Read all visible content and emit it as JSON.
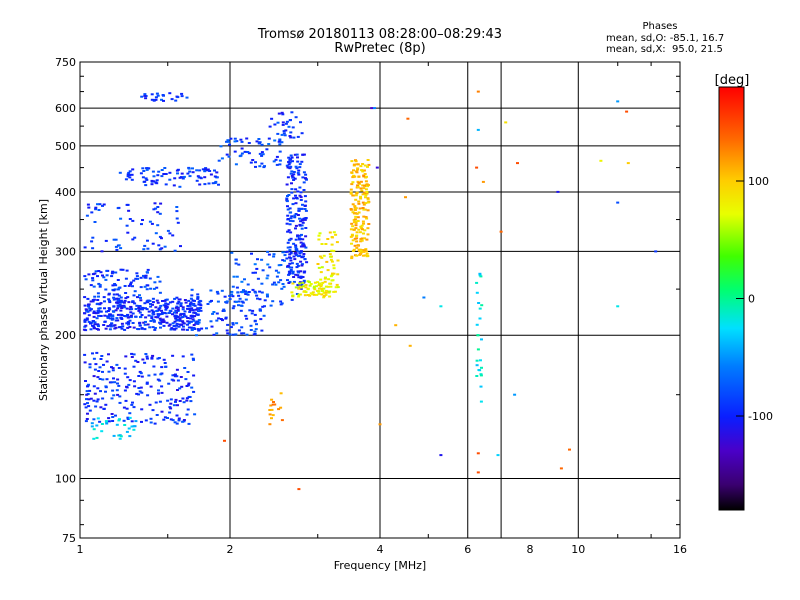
{
  "header": {
    "title_line1": "Tromsø 20180113 08:28:00–08:29:43",
    "title_line2": "RwPretec (8p)"
  },
  "stats": {
    "heading": "Phases",
    "line_o": "mean, sd,O: -85.1, 16.7",
    "line_x": "mean, sd,X:  95.0, 21.5"
  },
  "chart_data": {
    "type": "scatter",
    "title": "Tromsø 20180113 08:28:00–08:29:43",
    "subtitle": "RwPretec (8p)",
    "xlabel": "Frequency [MHz]",
    "ylabel": "Stationary phase Virtual Height [km]",
    "x_scale": "log",
    "y_scale": "log",
    "xlim": [
      1,
      16
    ],
    "ylim": [
      75,
      750
    ],
    "x_ticks": [
      1,
      2,
      4,
      6,
      8,
      10,
      16
    ],
    "x_gridlines": [
      2,
      4,
      6,
      7,
      10
    ],
    "y_ticks": [
      75,
      100,
      200,
      300,
      400,
      500,
      600,
      750
    ],
    "y_gridlines": [
      100,
      200,
      300,
      400,
      500,
      600
    ],
    "colorbar": {
      "label": "[deg]",
      "ticks": [
        100,
        0,
        -100
      ],
      "range": [
        -180,
        180
      ],
      "colormap": "rainbow"
    },
    "clusters": [
      {
        "f": [
          1.02,
          1.75
        ],
        "h": [
          205,
          240
        ],
        "phase": -95,
        "n": 420
      },
      {
        "f": [
          1.02,
          1.45
        ],
        "h": [
          240,
          275
        ],
        "phase": -90,
        "n": 90
      },
      {
        "f": [
          1.65,
          2.35
        ],
        "h": [
          200,
          250
        ],
        "phase": -85,
        "n": 120
      },
      {
        "f": [
          2.0,
          2.75
        ],
        "h": [
          230,
          300
        ],
        "phase": -80,
        "n": 80
      },
      {
        "f": [
          1.02,
          1.6
        ],
        "h": [
          300,
          380
        ],
        "phase": -90,
        "n": 70
      },
      {
        "f": [
          1.2,
          1.9
        ],
        "h": [
          410,
          450
        ],
        "phase": -90,
        "n": 90
      },
      {
        "f": [
          1.9,
          2.55
        ],
        "h": [
          450,
          520
        ],
        "phase": -85,
        "n": 60
      },
      {
        "f": [
          2.4,
          2.8
        ],
        "h": [
          520,
          590
        ],
        "phase": -90,
        "n": 30
      },
      {
        "f": [
          1.3,
          1.65
        ],
        "h": [
          620,
          645
        ],
        "phase": -90,
        "n": 25
      },
      {
        "f": [
          2.6,
          2.85
        ],
        "h": [
          250,
          480
        ],
        "phase": -95,
        "n": 220
      },
      {
        "f": [
          2.65,
          3.2
        ],
        "h": [
          240,
          260
        ],
        "phase": 80,
        "n": 60
      },
      {
        "f": [
          3.0,
          3.3
        ],
        "h": [
          245,
          330
        ],
        "phase": 85,
        "n": 60
      },
      {
        "f": [
          3.5,
          3.8
        ],
        "h": [
          290,
          470
        ],
        "phase": 105,
        "n": 180
      },
      {
        "f": [
          1.02,
          1.7
        ],
        "h": [
          130,
          185
        ],
        "phase": -95,
        "n": 230
      },
      {
        "f": [
          1.05,
          1.3
        ],
        "h": [
          120,
          135
        ],
        "phase": -30,
        "n": 30
      },
      {
        "f": [
          2.4,
          2.55
        ],
        "h": [
          130,
          155
        ],
        "phase": 120,
        "n": 15
      },
      {
        "f": [
          6.25,
          6.4
        ],
        "h": [
          140,
          270
        ],
        "phase": -20,
        "n": 25
      }
    ],
    "isolated_points": [
      {
        "f": 1.95,
        "h": 120,
        "phase": 150
      },
      {
        "f": 2.75,
        "h": 95,
        "phase": 150
      },
      {
        "f": 3.85,
        "h": 600,
        "phase": -130
      },
      {
        "f": 3.9,
        "h": 600,
        "phase": -60
      },
      {
        "f": 3.95,
        "h": 450,
        "phase": -120
      },
      {
        "f": 4.55,
        "h": 570,
        "phase": 140
      },
      {
        "f": 4.5,
        "h": 390,
        "phase": 120
      },
      {
        "f": 4.6,
        "h": 190,
        "phase": 110
      },
      {
        "f": 4.3,
        "h": 210,
        "phase": 110
      },
      {
        "f": 4.9,
        "h": 240,
        "phase": -60
      },
      {
        "f": 5.3,
        "h": 230,
        "phase": -20
      },
      {
        "f": 5.3,
        "h": 112,
        "phase": -110
      },
      {
        "f": 4.0,
        "h": 130,
        "phase": 120
      },
      {
        "f": 6.25,
        "h": 450,
        "phase": 150
      },
      {
        "f": 6.3,
        "h": 650,
        "phase": 130
      },
      {
        "f": 6.3,
        "h": 540,
        "phase": -40
      },
      {
        "f": 6.45,
        "h": 420,
        "phase": 120
      },
      {
        "f": 6.3,
        "h": 113,
        "phase": 150
      },
      {
        "f": 6.3,
        "h": 103,
        "phase": 150
      },
      {
        "f": 6.9,
        "h": 112,
        "phase": -30
      },
      {
        "f": 7.0,
        "h": 330,
        "phase": 140
      },
      {
        "f": 7.15,
        "h": 560,
        "phase": 90
      },
      {
        "f": 7.45,
        "h": 150,
        "phase": -50
      },
      {
        "f": 7.55,
        "h": 460,
        "phase": 150
      },
      {
        "f": 9.1,
        "h": 400,
        "phase": -110
      },
      {
        "f": 9.25,
        "h": 105,
        "phase": 140
      },
      {
        "f": 9.6,
        "h": 115,
        "phase": 140
      },
      {
        "f": 11.1,
        "h": 465,
        "phase": 80
      },
      {
        "f": 12.0,
        "h": 620,
        "phase": -50
      },
      {
        "f": 12.0,
        "h": 380,
        "phase": -80
      },
      {
        "f": 12.0,
        "h": 230,
        "phase": -20
      },
      {
        "f": 12.5,
        "h": 590,
        "phase": 150
      },
      {
        "f": 12.6,
        "h": 460,
        "phase": 100
      },
      {
        "f": 14.3,
        "h": 300,
        "phase": -90
      }
    ]
  }
}
